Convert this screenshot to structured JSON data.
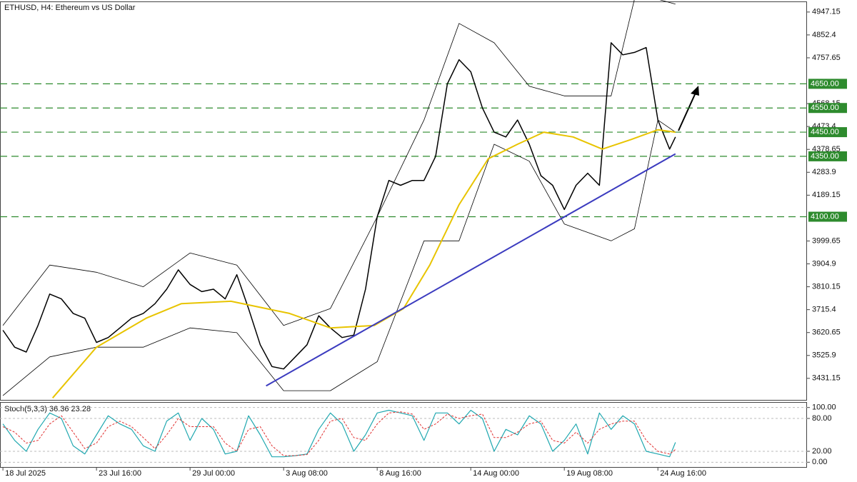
{
  "chart_data": [
    {
      "type": "line",
      "title": "ETHUSD, H4:  Ethereum vs US Dollar",
      "xlim": [
        -1,
        275
      ],
      "xticks": [
        {
          "value": 0,
          "label": "18 Jul 2025"
        },
        {
          "value": 32,
          "label": "23 Jul 16:00"
        },
        {
          "value": 64,
          "label": "29 Jul 00:00"
        },
        {
          "value": 96,
          "label": "3 Aug 08:00"
        },
        {
          "value": 128,
          "label": "8 Aug 16:00"
        },
        {
          "value": 160,
          "label": "14 Aug 00:00"
        },
        {
          "value": 192,
          "label": "19 Aug 08:00"
        },
        {
          "value": 224,
          "label": "24 Aug 16:00"
        }
      ],
      "ylim": [
        3342,
        4991
      ],
      "yticks": [
        4947.15,
        4852.4,
        4757.65,
        4568.15,
        4473.4,
        4378.65,
        4283.9,
        4189.15,
        3999.65,
        3904.9,
        3810.15,
        3715.4,
        3620.65,
        3525.9,
        3431.15
      ],
      "levels": [
        {
          "value": 4650,
          "label": "4650.00"
        },
        {
          "value": 4550,
          "label": "4550.00"
        },
        {
          "value": 4450,
          "label": "4450.00"
        },
        {
          "value": 4350,
          "label": "4350.00"
        },
        {
          "value": 4100,
          "label": "4100.00"
        }
      ],
      "level_color": "#2e8b2e",
      "series": [
        {
          "color": "#000000",
          "width": 1.5,
          "x": [
            0,
            4,
            8,
            12,
            16,
            20,
            24,
            28,
            32,
            36,
            40,
            44,
            48,
            52,
            56,
            60,
            64,
            68,
            72,
            76,
            80,
            84,
            88,
            92,
            96,
            100,
            104,
            108,
            112,
            116,
            120,
            124,
            128,
            132,
            136,
            140,
            144,
            148,
            152,
            156,
            160,
            164,
            168,
            172,
            176,
            180,
            184,
            188,
            192,
            196,
            200,
            204,
            208,
            212,
            216,
            220,
            224,
            228,
            230
          ],
          "values": [
            3630,
            3560,
            3540,
            3650,
            3780,
            3760,
            3700,
            3680,
            3580,
            3600,
            3640,
            3680,
            3700,
            3740,
            3800,
            3880,
            3820,
            3790,
            3800,
            3760,
            3860,
            3720,
            3570,
            3480,
            3470,
            3520,
            3570,
            3690,
            3640,
            3600,
            3610,
            3800,
            4100,
            4250,
            4230,
            4250,
            4250,
            4350,
            4650,
            4750,
            4700,
            4550,
            4450,
            4430,
            4500,
            4400,
            4270,
            4230,
            4130,
            4230,
            4280,
            4230,
            4820,
            4770,
            4780,
            4800,
            4500,
            4380,
            4430
          ]
        },
        {
          "color": "#000000",
          "width": 0.8,
          "x": [
            0,
            16,
            32,
            48,
            64,
            80,
            96,
            112,
            128,
            144,
            156,
            168,
            180,
            192,
            208,
            216,
            224,
            230
          ],
          "values": [
            3650,
            3900,
            3870,
            3810,
            3950,
            3900,
            3650,
            3720,
            4100,
            4500,
            4900,
            4820,
            4640,
            4600,
            4600,
            5000,
            5000,
            4980
          ]
        },
        {
          "color": "#000000",
          "width": 0.8,
          "x": [
            0,
            16,
            32,
            48,
            64,
            80,
            96,
            112,
            128,
            144,
            156,
            168,
            180,
            192,
            208,
            216,
            224,
            230
          ],
          "values": [
            3360,
            3520,
            3560,
            3560,
            3640,
            3620,
            3380,
            3380,
            3500,
            4000,
            4000,
            4400,
            4330,
            4070,
            4000,
            4050,
            4500,
            4450
          ]
        },
        {
          "color": "#e8c400",
          "width": 2,
          "x": [
            17,
            32,
            49,
            61,
            78,
            98,
            112,
            127,
            137,
            146,
            156,
            166,
            176,
            185,
            195,
            205,
            215,
            224,
            230
          ],
          "values": [
            3350,
            3560,
            3680,
            3740,
            3750,
            3700,
            3640,
            3650,
            3720,
            3900,
            4150,
            4340,
            4400,
            4450,
            4430,
            4380,
            4420,
            4460,
            4450
          ]
        },
        {
          "color": "#3b3bbf",
          "width": 2,
          "x": [
            90,
            230
          ],
          "values": [
            3400,
            4360
          ]
        }
      ]
    },
    {
      "type": "line",
      "title": "Stoch(5,3,3) 36.36 23.28",
      "xlim": [
        -1,
        275
      ],
      "ylim": [
        -10,
        110
      ],
      "yticks": [
        {
          "value": 0,
          "label": "0.00"
        },
        {
          "value": 20,
          "label": "20.00"
        },
        {
          "value": 80,
          "label": "80.00"
        },
        {
          "value": 100,
          "label": "100.00"
        }
      ],
      "grid": true,
      "series": [
        {
          "color": "#20a8b0",
          "width": 1.2,
          "x": [
            0,
            4,
            8,
            12,
            16,
            20,
            24,
            28,
            32,
            36,
            40,
            44,
            48,
            52,
            56,
            60,
            64,
            68,
            72,
            76,
            80,
            84,
            88,
            92,
            96,
            100,
            104,
            108,
            112,
            116,
            120,
            124,
            128,
            132,
            136,
            140,
            144,
            148,
            152,
            156,
            160,
            164,
            168,
            172,
            176,
            180,
            184,
            188,
            192,
            196,
            200,
            204,
            208,
            212,
            216,
            220,
            224,
            228,
            230
          ],
          "values": [
            70,
            40,
            20,
            60,
            90,
            80,
            30,
            15,
            50,
            85,
            70,
            60,
            30,
            20,
            75,
            90,
            40,
            80,
            60,
            15,
            20,
            85,
            50,
            10,
            10,
            12,
            15,
            60,
            90,
            70,
            20,
            50,
            90,
            95,
            90,
            85,
            40,
            90,
            90,
            70,
            95,
            80,
            20,
            60,
            50,
            85,
            70,
            20,
            40,
            70,
            15,
            90,
            60,
            85,
            70,
            20,
            15,
            10,
            36.36
          ]
        },
        {
          "color": "#e03030",
          "width": 1,
          "dash": true,
          "x": [
            0,
            4,
            8,
            12,
            16,
            20,
            24,
            28,
            32,
            36,
            40,
            44,
            48,
            52,
            56,
            60,
            64,
            68,
            72,
            76,
            80,
            84,
            88,
            92,
            96,
            100,
            104,
            108,
            112,
            116,
            120,
            124,
            128,
            132,
            136,
            140,
            144,
            148,
            152,
            156,
            160,
            164,
            168,
            172,
            176,
            180,
            184,
            188,
            192,
            196,
            200,
            204,
            208,
            212,
            216,
            220,
            224,
            228,
            230
          ],
          "values": [
            65,
            55,
            35,
            40,
            70,
            85,
            55,
            25,
            35,
            65,
            75,
            65,
            45,
            25,
            50,
            80,
            65,
            65,
            65,
            35,
            20,
            60,
            65,
            30,
            12,
            12,
            14,
            40,
            75,
            80,
            45,
            40,
            70,
            90,
            92,
            88,
            60,
            70,
            88,
            80,
            85,
            88,
            45,
            45,
            55,
            70,
            75,
            40,
            35,
            55,
            35,
            60,
            70,
            75,
            75,
            40,
            20,
            15,
            23.28
          ]
        }
      ]
    }
  ]
}
